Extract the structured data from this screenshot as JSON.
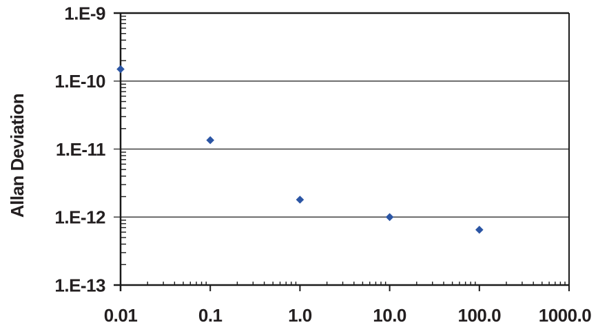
{
  "chart_data": {
    "type": "scatter",
    "title": "",
    "xlabel": "",
    "ylabel": "Allan Deviation",
    "x_scale": "log",
    "y_scale": "log",
    "xlim": [
      0.01,
      1000
    ],
    "ylim": [
      1e-13,
      1e-09
    ],
    "x_tick_values": [
      0.01,
      0.1,
      1,
      10,
      100,
      1000
    ],
    "x_tick_labels": [
      "0.01",
      "0.1",
      "1.0",
      "10.0",
      "100.0",
      "1000.0"
    ],
    "y_tick_values": [
      1e-09,
      1e-10,
      1e-11,
      1e-12,
      1e-13
    ],
    "y_tick_labels": [
      "1.E-9",
      "1.E-10",
      "1.E-11",
      "1.E-12",
      "1.E-13"
    ],
    "grid": "horizontal major gridlines, full rectangular frame, log minor ticks inside axes",
    "legend": "none",
    "series": [
      {
        "name": "Allan Deviation",
        "marker": "diamond",
        "points": [
          [
            0.01,
            1.5e-10
          ],
          [
            0.1,
            1.35e-11
          ],
          [
            1.0,
            1.8e-12
          ],
          [
            10.0,
            1e-12
          ],
          [
            100.0,
            6.5e-13
          ]
        ]
      }
    ]
  },
  "colors": {
    "marker": "#2b55a4",
    "axis": "#1a1a1a",
    "grid": "#3f3f3f",
    "text": "#231f20",
    "background": "#ffffff"
  }
}
